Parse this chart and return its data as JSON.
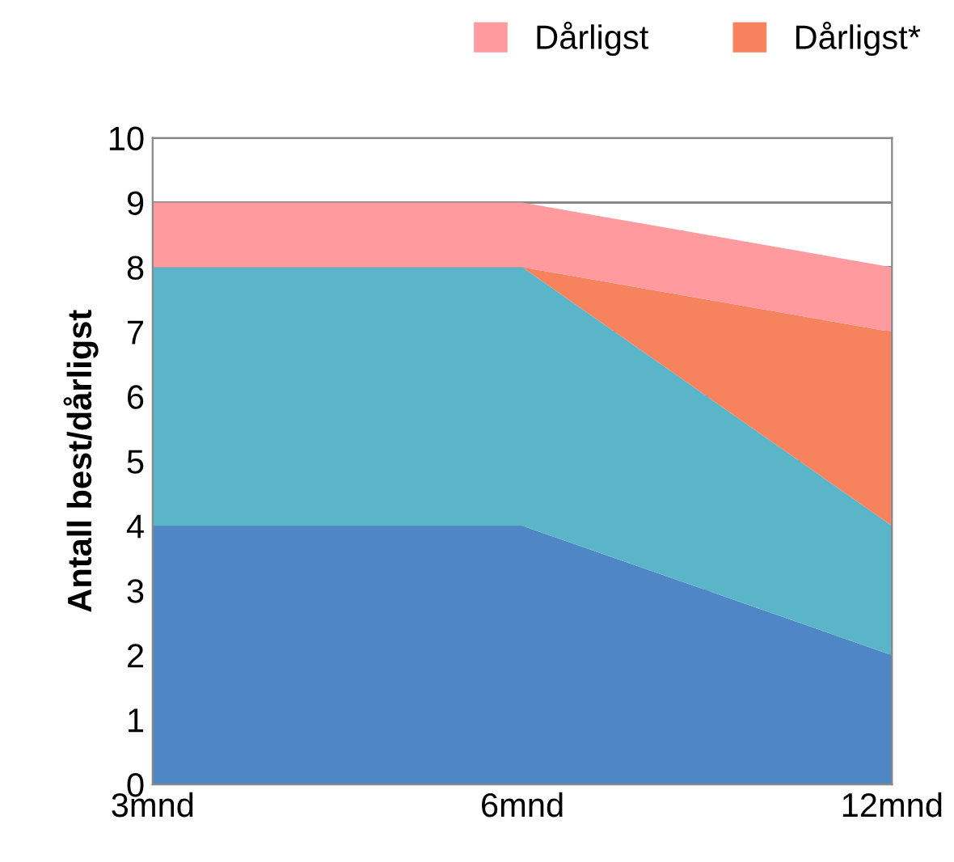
{
  "chart_data": {
    "type": "area",
    "stacked": true,
    "ylabel": "Antall best/dårligst",
    "categories": [
      "3mnd",
      "6mnd",
      "12mnd"
    ],
    "series": [
      {
        "color": "#4f86c6",
        "values": [
          4,
          4,
          2
        ]
      },
      {
        "color": "#5bb5c9",
        "values": [
          4,
          4,
          2
        ]
      },
      {
        "name": "Dårligst*",
        "color": "#f6825e",
        "values": [
          0,
          0,
          3
        ]
      },
      {
        "name": "Dårligst",
        "color": "#ff9a9e",
        "values": [
          1,
          1,
          1
        ]
      }
    ],
    "ylim": [
      0,
      10
    ],
    "yticks": [
      0,
      1,
      2,
      3,
      4,
      5,
      6,
      7,
      8,
      9,
      10
    ],
    "grid": "y",
    "legend": "top right"
  }
}
